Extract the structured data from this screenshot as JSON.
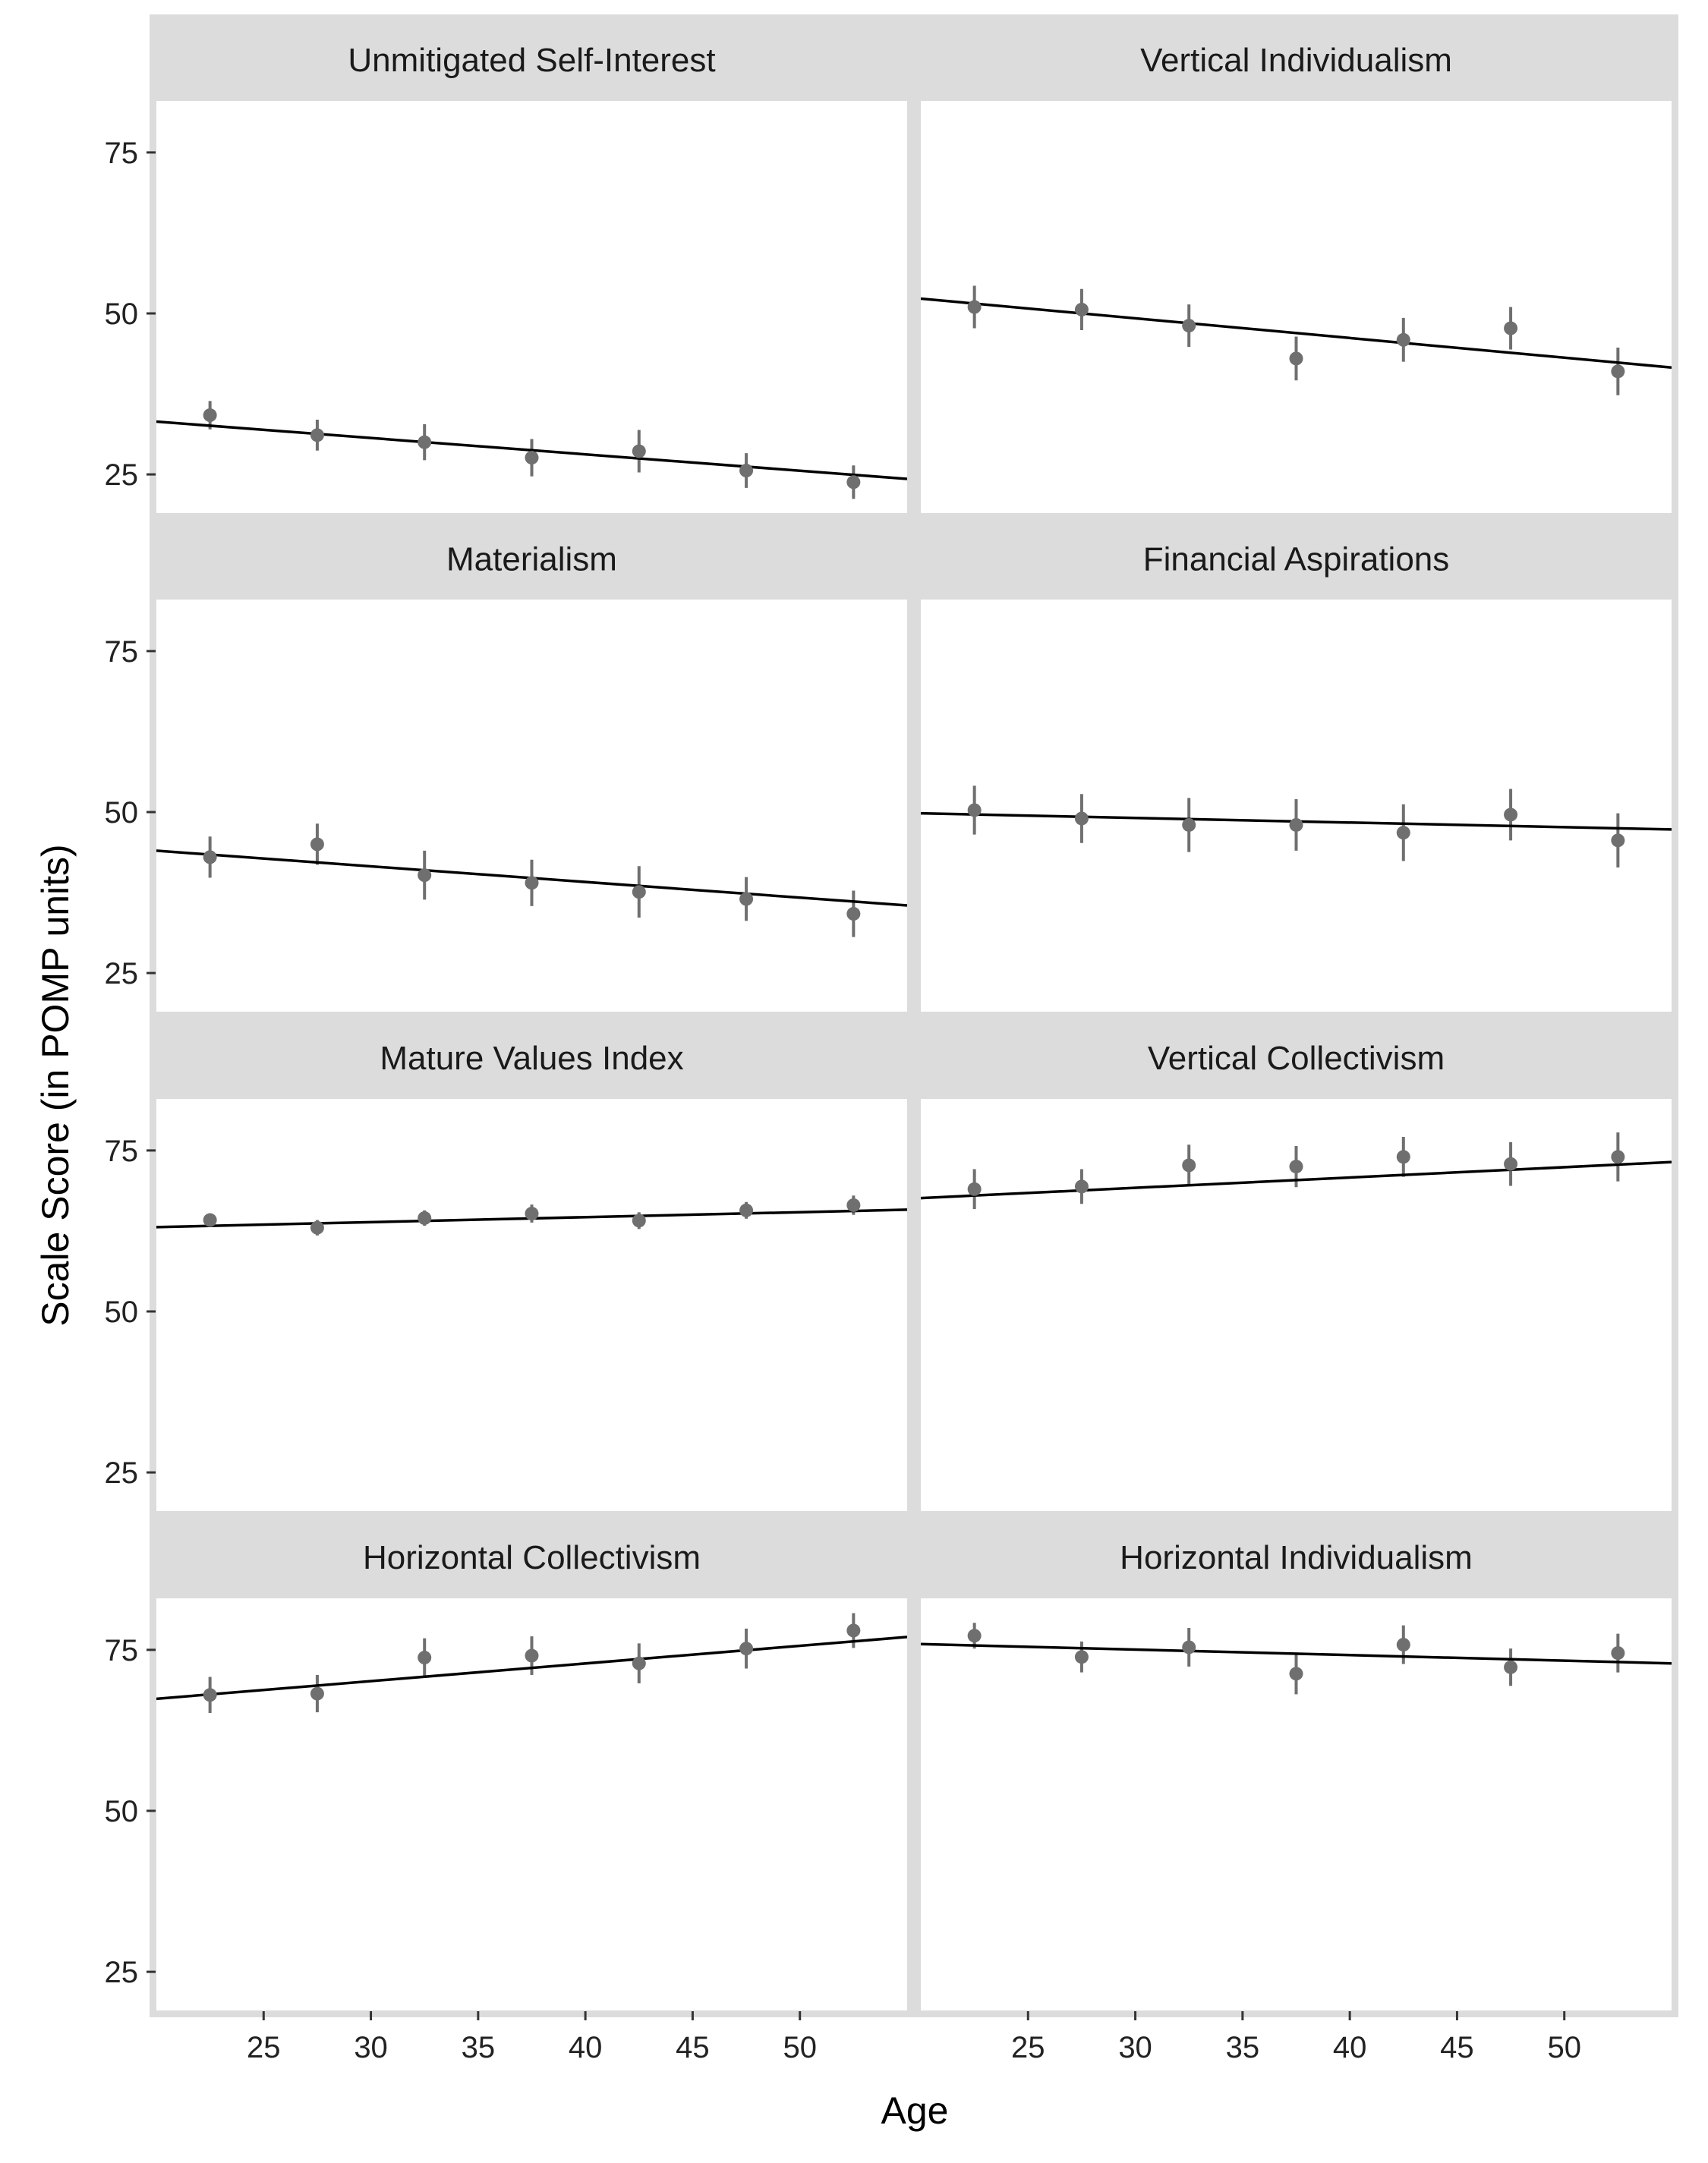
{
  "chart_data": {
    "type": "scatter",
    "xlabel": "Age",
    "ylabel": "Scale Score (in POMP units)",
    "xlim": [
      20,
      55
    ],
    "ylim": [
      19,
      83
    ],
    "x_ticks": [
      25,
      30,
      35,
      40,
      45,
      50
    ],
    "y_ticks": [
      25,
      50,
      75
    ],
    "x": [
      22.5,
      27.5,
      32.5,
      37.5,
      42.5,
      47.5,
      52.5
    ],
    "colors": {
      "point": "#6f6f6f",
      "line": "#000000",
      "strip": "#dcdcdc",
      "frame": "#dcdcdc"
    },
    "panels": [
      {
        "title": "Unmitigated Self-Interest",
        "values": [
          34.2,
          31.1,
          30.0,
          27.6,
          28.6,
          25.6,
          23.8
        ],
        "err": [
          2.2,
          2.4,
          2.8,
          2.9,
          3.3,
          2.7,
          2.6
        ],
        "fit": [
          33.2,
          24.3
        ]
      },
      {
        "title": "Vertical Individualism",
        "values": [
          51.0,
          50.6,
          48.1,
          43.0,
          45.9,
          47.7,
          41.0
        ],
        "err": [
          3.3,
          3.2,
          3.3,
          3.4,
          3.4,
          3.3,
          3.7
        ],
        "fit": [
          52.3,
          41.6
        ]
      },
      {
        "title": "Materialism",
        "values": [
          43.0,
          45.0,
          40.2,
          39.0,
          37.6,
          36.5,
          34.2
        ],
        "err": [
          3.2,
          3.2,
          3.8,
          3.6,
          4.0,
          3.4,
          3.6
        ],
        "fit": [
          44.0,
          35.5
        ]
      },
      {
        "title": "Financial Aspirations",
        "values": [
          50.3,
          49.0,
          48.0,
          48.0,
          46.8,
          49.6,
          45.6
        ],
        "err": [
          3.8,
          3.8,
          4.2,
          4.0,
          4.4,
          4.0,
          4.2
        ],
        "fit": [
          49.8,
          47.3
        ]
      },
      {
        "title": "Mature Values Index",
        "values": [
          64.2,
          63.0,
          64.5,
          65.2,
          64.1,
          65.7,
          66.5
        ],
        "err": [
          1.0,
          1.2,
          1.2,
          1.4,
          1.3,
          1.3,
          1.5
        ],
        "fit": [
          63.1,
          65.8
        ]
      },
      {
        "title": "Vertical Collectivism",
        "values": [
          69.0,
          69.4,
          72.7,
          72.5,
          74.0,
          72.9,
          74.0
        ],
        "err": [
          3.1,
          2.7,
          3.2,
          3.2,
          3.1,
          3.4,
          3.8
        ],
        "fit": [
          67.6,
          73.2
        ]
      },
      {
        "title": "Horizontal Collectivism",
        "values": [
          68.0,
          68.2,
          73.8,
          74.1,
          72.9,
          75.2,
          78.0
        ],
        "err": [
          2.8,
          2.9,
          3.0,
          3.0,
          3.1,
          3.1,
          2.7
        ],
        "fit": [
          67.4,
          77.0
        ]
      },
      {
        "title": "Horizontal Individualism",
        "values": [
          77.2,
          73.9,
          75.4,
          71.3,
          75.8,
          72.3,
          74.5
        ],
        "err": [
          2.0,
          2.4,
          3.0,
          3.2,
          3.0,
          2.9,
          3.0
        ],
        "fit": [
          75.9,
          72.9
        ]
      }
    ]
  }
}
